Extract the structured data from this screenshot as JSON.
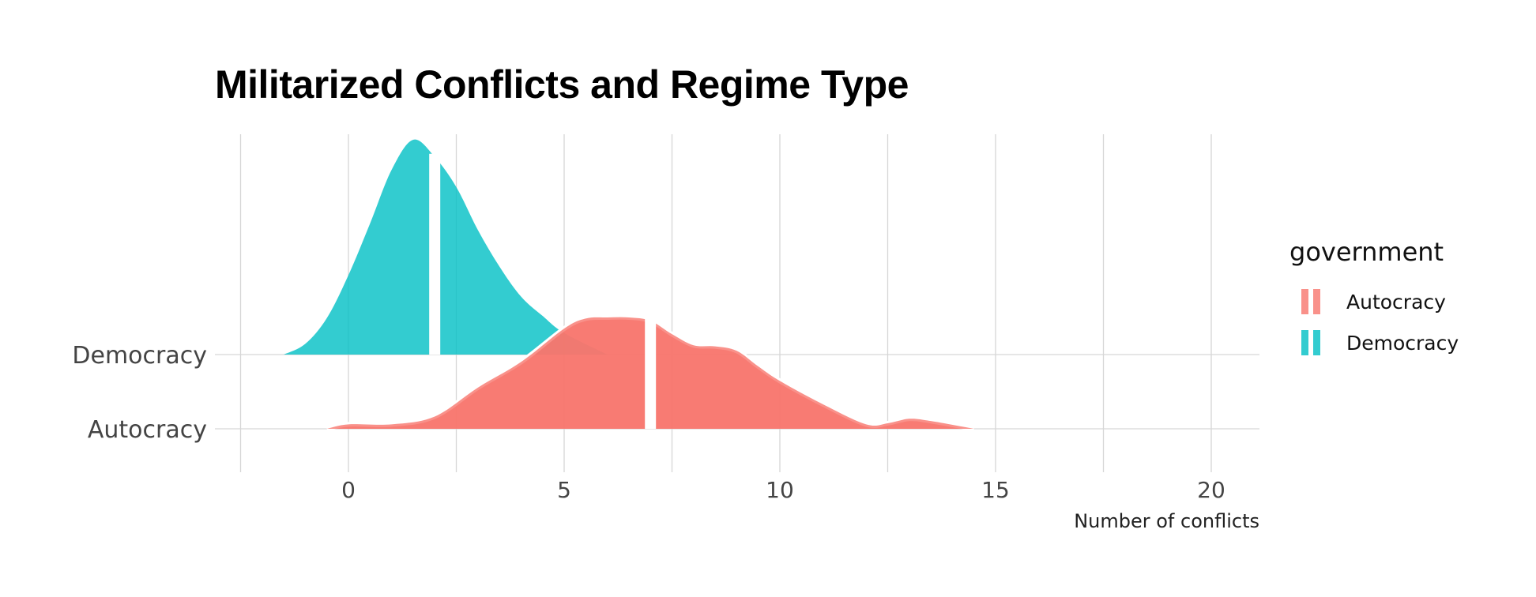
{
  "title": "Militarized Conflicts and Regime Type",
  "legend": {
    "title": "government",
    "items": [
      {
        "label": "Autocracy",
        "color": "#F8766D"
      },
      {
        "label": "Democracy",
        "color": "#00BFC4"
      }
    ]
  },
  "chart_data": {
    "type": "area",
    "subtype": "ridgeline-density",
    "title": "Militarized Conflicts and Regime Type",
    "xlabel": "Number of conflicts",
    "ylabel": "",
    "xlim": [
      -2.5,
      21
    ],
    "xticks": [
      0,
      5,
      10,
      15,
      20
    ],
    "categories": [
      "Democracy",
      "Autocracy"
    ],
    "grid": true,
    "legend_position": "right",
    "series": [
      {
        "name": "Democracy",
        "color": "#00BFC4",
        "median": 2,
        "x": [
          -1.5,
          -1.0,
          -0.5,
          0.0,
          0.5,
          1.0,
          1.5,
          2.0,
          2.5,
          3.0,
          3.5,
          4.0,
          4.5,
          5.0,
          6.0
        ],
        "density": [
          0.0,
          0.05,
          0.17,
          0.37,
          0.61,
          0.86,
          1.0,
          0.92,
          0.78,
          0.58,
          0.41,
          0.27,
          0.18,
          0.1,
          0.0
        ]
      },
      {
        "name": "Autocracy",
        "color": "#F8766D",
        "median": 7,
        "x": [
          -0.5,
          0.0,
          1.0,
          2.0,
          3.0,
          4.0,
          5.0,
          5.5,
          6.0,
          6.5,
          7.0,
          7.5,
          8.0,
          8.5,
          9.0,
          9.5,
          10.0,
          11.0,
          12.0,
          12.5,
          13.0,
          13.5,
          14.5
        ],
        "density": [
          0.0,
          0.04,
          0.04,
          0.11,
          0.37,
          0.6,
          0.9,
          0.99,
          1.0,
          1.0,
          0.97,
          0.85,
          0.75,
          0.74,
          0.7,
          0.56,
          0.43,
          0.22,
          0.04,
          0.05,
          0.09,
          0.07,
          0.0
        ]
      }
    ]
  }
}
